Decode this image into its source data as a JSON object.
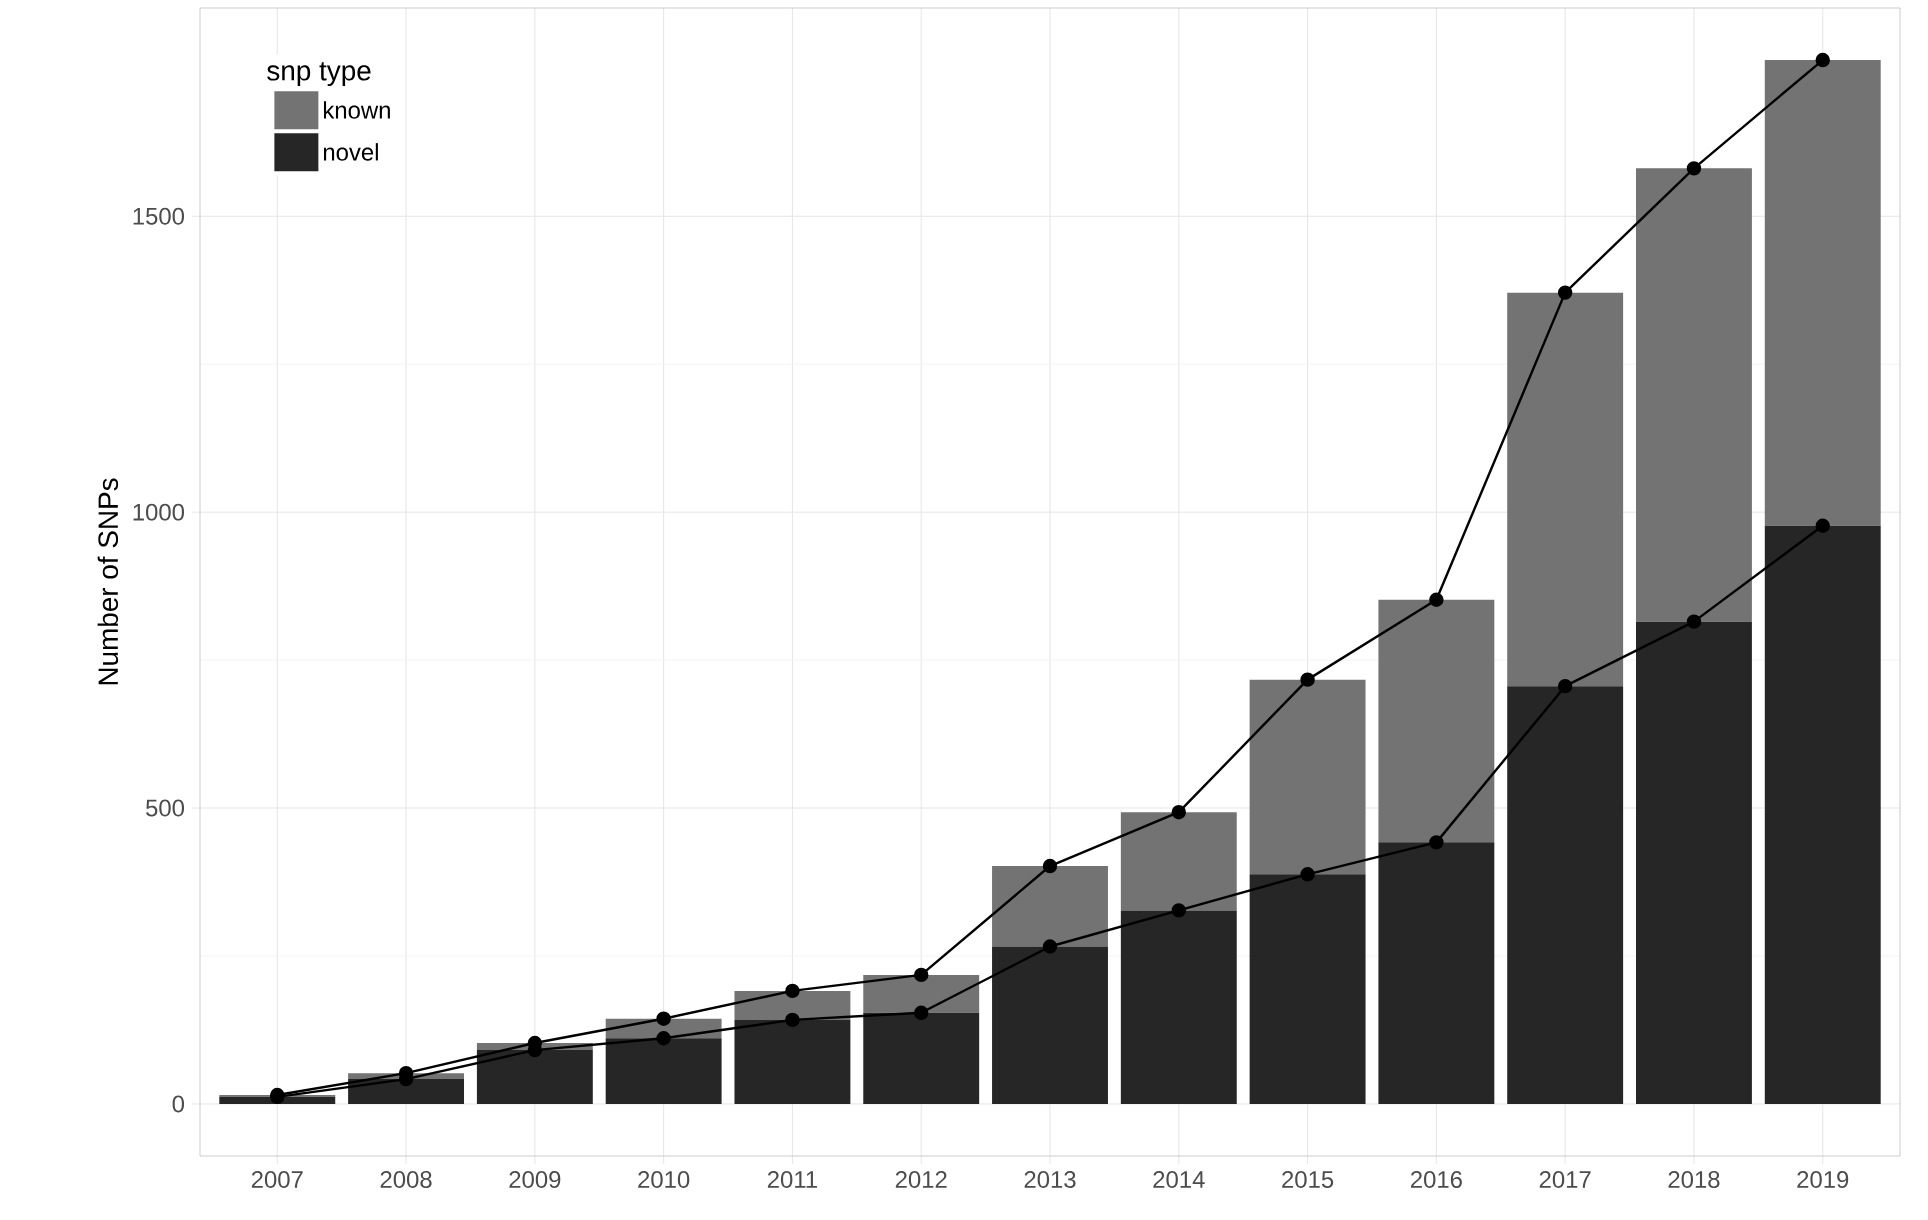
{
  "chart_data": {
    "type": "bar",
    "stacked": true,
    "ylabel": "Number of SNPs",
    "legend_title": "snp type",
    "legend": "top left",
    "grid": true,
    "categories": [
      "2007",
      "2008",
      "2009",
      "2010",
      "2011",
      "2012",
      "2013",
      "2014",
      "2015",
      "2016",
      "2017",
      "2018",
      "2019"
    ],
    "ylim": [
      -88,
      1852
    ],
    "yticks": [
      0,
      500,
      1000,
      1500
    ],
    "series": [
      {
        "name": "novel",
        "color": "#262626",
        "values": [
          12,
          42,
          91,
          111,
          142,
          154,
          266,
          327,
          388,
          442,
          706,
          815,
          977
        ]
      },
      {
        "name": "known",
        "color": "#737373",
        "values": [
          3,
          10,
          12,
          33,
          49,
          64,
          136,
          166,
          329,
          410,
          665,
          766,
          787
        ]
      },
      {
        "type": "line",
        "color": "#000000",
        "marker": "circle",
        "values": [
          15,
          52,
          103,
          144,
          191,
          218,
          402,
          493,
          717,
          852,
          1371,
          1581,
          1764
        ]
      },
      {
        "type": "line",
        "color": "#000000",
        "marker": "circle",
        "values": [
          12,
          42,
          91,
          111,
          142,
          154,
          266,
          327,
          388,
          442,
          706,
          815,
          977
        ]
      }
    ]
  }
}
